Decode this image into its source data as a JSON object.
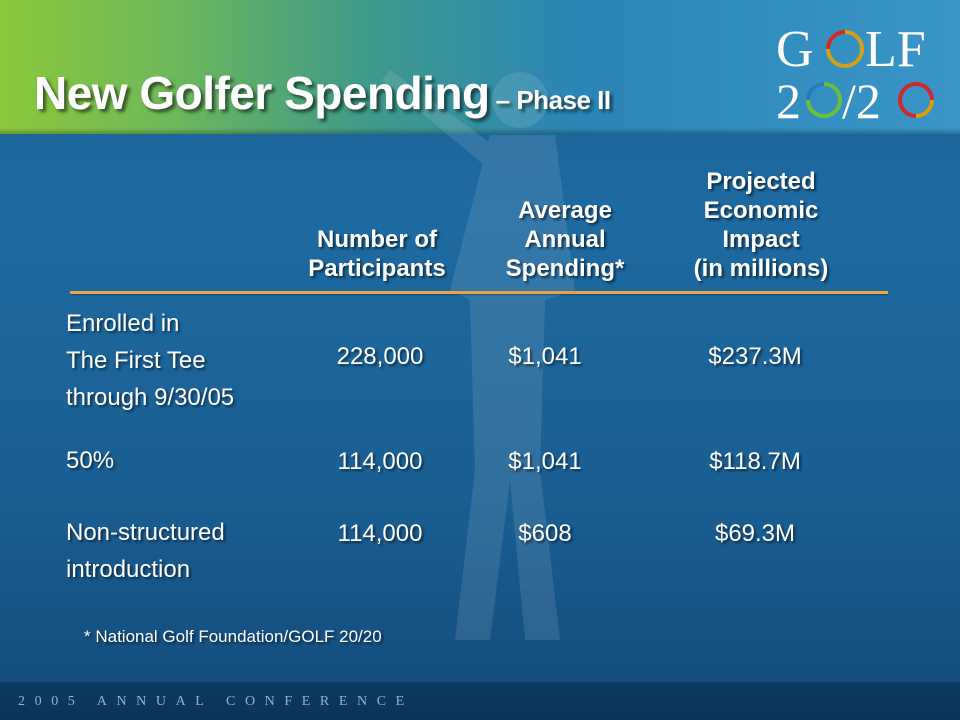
{
  "title": "New Golfer Spending",
  "subtitle": "– Phase II",
  "logo": {
    "line1": "GOLF",
    "line2": "20/20"
  },
  "columns": {
    "participants": [
      "Number of",
      "Participants"
    ],
    "spending": [
      "Average",
      "Annual",
      "Spending*"
    ],
    "impact": [
      "Projected",
      "Economic",
      "Impact",
      "(in millions)"
    ]
  },
  "rows": [
    {
      "label": [
        "Enrolled in",
        "The First Tee",
        "through 9/30/05"
      ],
      "participants": "228,000",
      "spending": "$1,041",
      "impact": "$237.3M"
    },
    {
      "label": [
        "50%"
      ],
      "participants": "114,000",
      "spending": "$1,041",
      "impact": "$118.7M"
    },
    {
      "label": [
        "Non-structured",
        "introduction"
      ],
      "participants": "114,000",
      "spending": "$608",
      "impact": "$69.3M"
    }
  ],
  "footnote": "* National Golf Foundation/GOLF 20/20",
  "footer": "2005 ANNUAL CONFERENCE",
  "colors": {
    "rule": "#e8a24a",
    "logo_gold": "#d4a017",
    "logo_red": "#cf2a2a",
    "logo_green": "#6bbf3a",
    "logo_blue": "#2d74c7"
  }
}
